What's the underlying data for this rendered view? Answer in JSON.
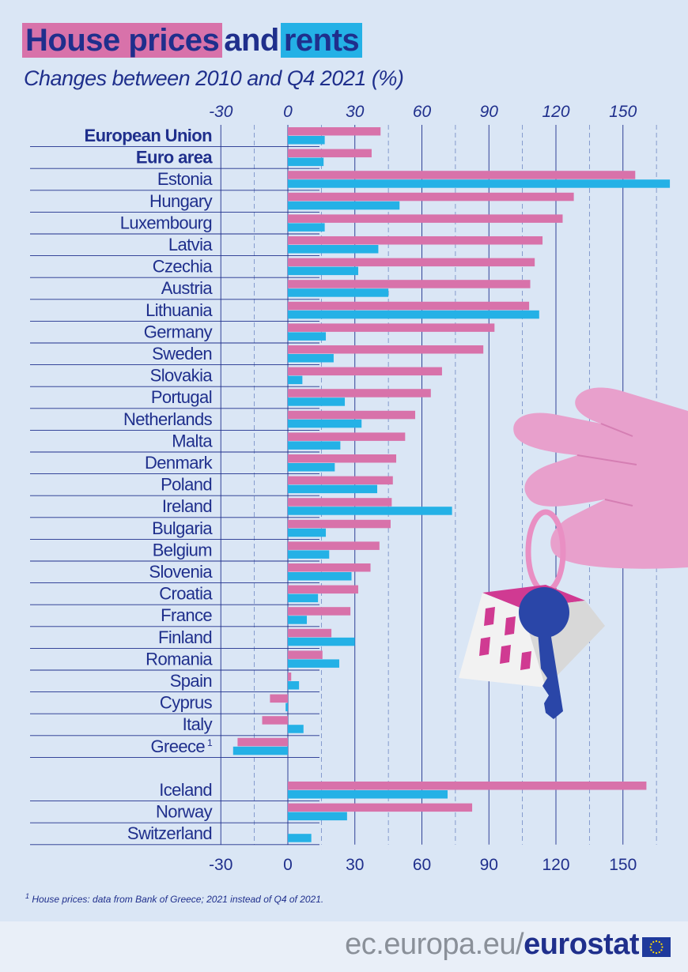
{
  "header": {
    "title_part1": "House prices",
    "title_part2": "and",
    "title_part3": "rents",
    "subtitle": "Changes between 2010 and Q4 2021 (%)"
  },
  "colors": {
    "house_prices": "#d872aa",
    "rents": "#24b1e6",
    "text": "#1f2f8c",
    "background": "#dae6f5"
  },
  "chart_data": {
    "type": "bar",
    "orientation": "horizontal",
    "title": "House prices and rents",
    "subtitle": "Changes between 2010 and Q4 2021 (%)",
    "xlim": [
      -30,
      170
    ],
    "xticks": [
      "-30",
      "0",
      "30",
      "60",
      "90",
      "120",
      "150"
    ],
    "grid": true,
    "categories": [
      "European Union",
      "Euro area",
      "Estonia",
      "Hungary",
      "Luxembourg",
      "Latvia",
      "Czechia",
      "Austria",
      "Lithuania",
      "Germany",
      "Sweden",
      "Slovakia",
      "Portugal",
      "Netherlands",
      "Malta",
      "Denmark",
      "Poland",
      "Ireland",
      "Bulgaria",
      "Belgium",
      "Slovenia",
      "Croatia",
      "France",
      "Finland",
      "Romania",
      "Spain",
      "Cyprus",
      "Italy",
      "Greece",
      "Iceland",
      "Norway",
      "Switzerland"
    ],
    "category_footnote": {
      "Greece": "1"
    },
    "bold_categories": [
      "European Union",
      "Euro area"
    ],
    "series": [
      {
        "name": "House prices",
        "color": "#d872aa",
        "values": [
          41.5,
          37.5,
          155.5,
          128,
          123,
          114,
          110.5,
          108.5,
          108,
          92.5,
          87.5,
          69,
          64,
          57,
          52.5,
          48.5,
          47,
          46.5,
          46,
          41,
          37,
          31.5,
          28,
          19.5,
          15.5,
          1.5,
          -8,
          -11.5,
          -22.5,
          160.5,
          82.5,
          null
        ]
      },
      {
        "name": "Rents",
        "color": "#24b1e6",
        "values": [
          16.5,
          16,
          171,
          50,
          16.5,
          40.5,
          31.5,
          45,
          112.5,
          17,
          20.5,
          6.5,
          25.5,
          33,
          23.5,
          21,
          40,
          73.5,
          17,
          18.5,
          28.5,
          13.5,
          8.5,
          30,
          23,
          5,
          -1,
          7,
          -24.5,
          71.5,
          26.5,
          10.5
        ]
      }
    ]
  },
  "footnote": {
    "marker": "1",
    "text": "House prices: data from Bank of Greece; 2021 instead of Q4 of 2021."
  },
  "footer": {
    "url_prefix": "ec.europa.eu/",
    "url_brand": "eurostat"
  }
}
